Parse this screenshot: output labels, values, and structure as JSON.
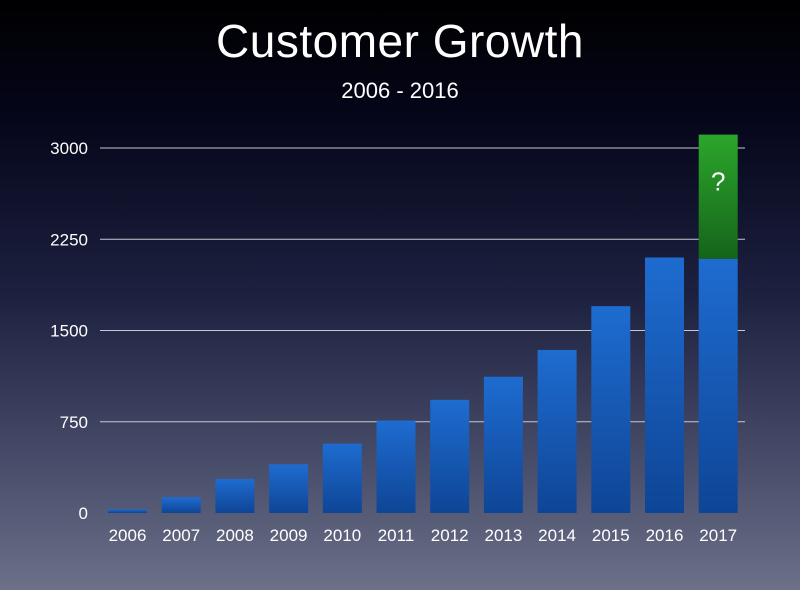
{
  "header": {
    "title": "Customer Growth",
    "subtitle": "2006 - 2016"
  },
  "colors": {
    "bar_blue_top": "#1e6cd0",
    "bar_blue_bottom": "#0e4596",
    "bar_green_top": "#2ca62c",
    "bar_green_bottom": "#15641a",
    "grid": "#c8c8d0"
  },
  "chart_data": {
    "type": "bar",
    "title": "Customer Growth",
    "subtitle": "2006 - 2016",
    "xlabel": "",
    "ylabel": "",
    "ylim": [
      0,
      3000
    ],
    "yticks": [
      0,
      750,
      1500,
      2250,
      3000
    ],
    "grid": true,
    "categories": [
      "2006",
      "2007",
      "2008",
      "2009",
      "2010",
      "2011",
      "2012",
      "2013",
      "2014",
      "2015",
      "2016",
      "2017"
    ],
    "series": [
      {
        "values": [
          30,
          130,
          280,
          400,
          570,
          760,
          930,
          1120,
          1340,
          1700,
          2100,
          2090
        ]
      },
      {
        "values": [
          0,
          0,
          0,
          0,
          0,
          0,
          0,
          0,
          0,
          0,
          0,
          1020
        ]
      }
    ],
    "annotations": [
      {
        "category": "2017",
        "text": "?"
      }
    ]
  }
}
